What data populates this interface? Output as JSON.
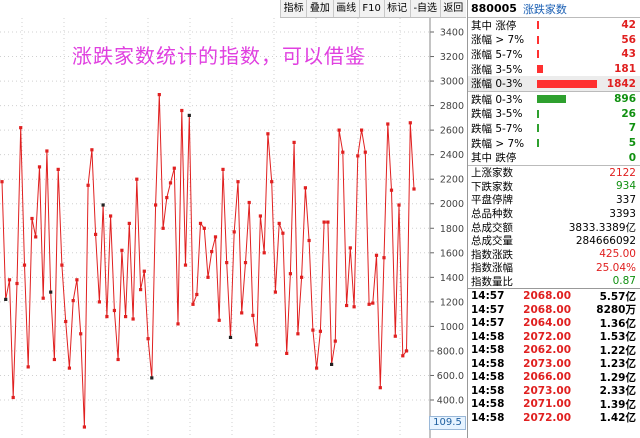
{
  "toolbar": {
    "items": [
      "指标",
      "叠加",
      "画线",
      "F10",
      "标记",
      "-自选",
      "返回"
    ]
  },
  "chart": {
    "title": "涨跌家数统计的指数，可以借鉴",
    "last_value": "109.5",
    "y_ticks": [
      "3400",
      "3200",
      "3000",
      "2800",
      "2600",
      "2400",
      "2200",
      "2000",
      "1800",
      "1600",
      "1400",
      "1200",
      "1000",
      "800.0",
      "600.0",
      "400.0"
    ],
    "series_values": [
      2180,
      1220,
      1380,
      420,
      1350,
      2620,
      1500,
      670,
      1880,
      1730,
      2300,
      1230,
      2430,
      1280,
      730,
      2280,
      1500,
      1040,
      660,
      1210,
      1380,
      940,
      180,
      2150,
      2440,
      1750,
      1200,
      1990,
      1080,
      1900,
      1130,
      730,
      1620,
      1080,
      1840,
      1060,
      2200,
      1300,
      1450,
      900,
      580,
      1990,
      2890,
      1800,
      2050,
      2170,
      2290,
      1020,
      2760,
      1500,
      2720,
      1180,
      1260,
      1840,
      1800,
      1400,
      1610,
      1730,
      1050,
      2280,
      1520,
      910,
      1770,
      2180,
      1110,
      1520,
      2010,
      1090,
      850,
      1900,
      1600,
      2570,
      2180,
      1280,
      1840,
      1760,
      780,
      1430,
      2500,
      940,
      1400,
      2130,
      1700,
      970,
      660,
      960,
      1850,
      1850,
      690,
      880,
      2600,
      2420,
      1170,
      1640,
      1160,
      2390,
      2600,
      2420,
      1180,
      1190,
      1580,
      500,
      1560,
      2650,
      2110,
      920,
      1990,
      760,
      800,
      2660,
      2120
    ],
    "dark_points": [
      1,
      13,
      27,
      40,
      50,
      61,
      88
    ],
    "ymin": 300,
    "ymax": 3500,
    "line_color": "#e02020"
  },
  "panel": {
    "code": "880005",
    "name": "涨跌家数",
    "up_rows": [
      {
        "label": "其中 涨停",
        "value": "42",
        "bar": 0.02
      },
      {
        "label": "涨幅 > 7%",
        "value": "56",
        "bar": 0.03
      },
      {
        "label": "涨幅 5-7%",
        "value": "43",
        "bar": 0.02
      },
      {
        "label": "涨幅 3-5%",
        "value": "181",
        "bar": 0.1
      },
      {
        "label": "涨幅 0-3%",
        "value": "1842",
        "bar": 1.0,
        "highlight": true
      }
    ],
    "down_rows": [
      {
        "label": "跌幅 0-3%",
        "value": "896",
        "bar": 0.49
      },
      {
        "label": "跌幅 3-5%",
        "value": "26",
        "bar": 0.015
      },
      {
        "label": "跌幅 5-7%",
        "value": "7",
        "bar": 0.01
      },
      {
        "label": "跌幅 > 7%",
        "value": "5",
        "bar": 0.01
      },
      {
        "label": "其中 跌停",
        "value": "0",
        "bar": 0
      }
    ],
    "stats": [
      {
        "label": "上涨家数",
        "value": "2122",
        "color": "red"
      },
      {
        "label": "下跌家数",
        "value": "934",
        "color": "green"
      },
      {
        "label": "平盘停牌",
        "value": "337",
        "color": "blk"
      },
      {
        "label": "总品种数",
        "value": "3393",
        "color": "blk"
      },
      {
        "label": "总成交额",
        "value": "3833.3389亿",
        "color": "blk"
      },
      {
        "label": "总成交量",
        "value": "284666092",
        "color": "blk"
      },
      {
        "label": "指数涨跌",
        "value": "425.00",
        "color": "red"
      },
      {
        "label": "指数涨幅",
        "value": "25.04%",
        "color": "red"
      },
      {
        "label": "指数量比",
        "value": "0.87",
        "color": "green"
      }
    ],
    "ticks": [
      {
        "time": "14:57",
        "price": "2068.00",
        "vol": "5.57亿"
      },
      {
        "time": "14:57",
        "price": "2068.00",
        "vol": "8280万"
      },
      {
        "time": "14:57",
        "price": "2064.00",
        "vol": "1.36亿"
      },
      {
        "time": "14:58",
        "price": "2072.00",
        "vol": "1.53亿"
      },
      {
        "time": "14:58",
        "price": "2062.00",
        "vol": "1.22亿"
      },
      {
        "time": "14:58",
        "price": "2073.00",
        "vol": "1.23亿"
      },
      {
        "time": "14:58",
        "price": "2066.00",
        "vol": "1.29亿"
      },
      {
        "time": "14:58",
        "price": "2073.00",
        "vol": "2.33亿"
      },
      {
        "time": "14:58",
        "price": "2071.00",
        "vol": "1.39亿"
      },
      {
        "time": "14:58",
        "price": "2072.00",
        "vol": "1.42亿"
      }
    ]
  }
}
